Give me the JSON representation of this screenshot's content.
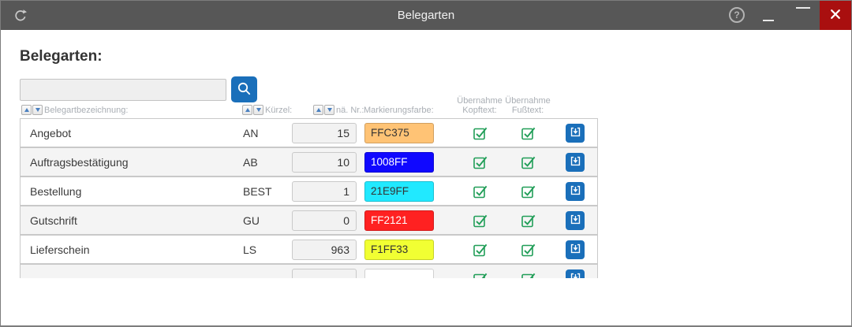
{
  "titlebar": {
    "title": "Belegarten",
    "help_glyph": "?"
  },
  "main": {
    "heading": "Belegarten:",
    "search_value": ""
  },
  "table": {
    "headers": {
      "name": "Belegartbezeichnung:",
      "code": "Kürzel:",
      "next_nr": "nä. Nr.:",
      "color": "Markierungsfarbe:",
      "kopftext_line1": "Übernahme",
      "kopftext_line2": "Kopftext:",
      "fusstext_line1": "Übernahme",
      "fusstext_line2": "Fußtext:"
    },
    "rows": [
      {
        "name": "Angebot",
        "code": "AN",
        "next_nr": "15",
        "color_hex": "FFC375",
        "color_bg": "#FFC375",
        "color_text": "#333333",
        "kopftext": true,
        "fusstext": true
      },
      {
        "name": "Auftragsbestätigung",
        "code": "AB",
        "next_nr": "10",
        "color_hex": "1008FF",
        "color_bg": "#1008FF",
        "color_text": "#ffffff",
        "kopftext": true,
        "fusstext": true
      },
      {
        "name": "Bestellung",
        "code": "BEST",
        "next_nr": "1",
        "color_hex": "21E9FF",
        "color_bg": "#21E9FF",
        "color_text": "#333333",
        "kopftext": true,
        "fusstext": true
      },
      {
        "name": "Gutschrift",
        "code": "GU",
        "next_nr": "0",
        "color_hex": "FF2121",
        "color_bg": "#FF2121",
        "color_text": "#ffffff",
        "kopftext": true,
        "fusstext": true
      },
      {
        "name": "Lieferschein",
        "code": "LS",
        "next_nr": "963",
        "color_hex": "F1FF33",
        "color_bg": "#F1FF33",
        "color_text": "#333333",
        "kopftext": true,
        "fusstext": true
      },
      {
        "name": "",
        "code": "",
        "next_nr": "",
        "color_hex": "",
        "color_bg": "#ffffff",
        "color_text": "#333333",
        "kopftext": true,
        "fusstext": true
      }
    ]
  },
  "icons": {
    "titlebar_left": "refresh-icon",
    "titlebar_right": [
      "help-icon",
      "minimize-icon",
      "maximize-icon",
      "close-icon"
    ],
    "search_button": "search-icon",
    "sort_buttons": [
      "sort-asc-icon",
      "sort-desc-icon"
    ],
    "checkbox": "checkbox-checked-icon",
    "row_action": "import-down-arrow-icon"
  },
  "colors": {
    "titlebar_bg": "#575757",
    "close_button_bg": "#a90f0f",
    "accent_blue": "#1a6fba",
    "checkbox_green": "#219e58",
    "header_text": "#a9aeb4",
    "row_border": "#c9c9c9",
    "alt_row_bg": "#f4f4f4"
  }
}
